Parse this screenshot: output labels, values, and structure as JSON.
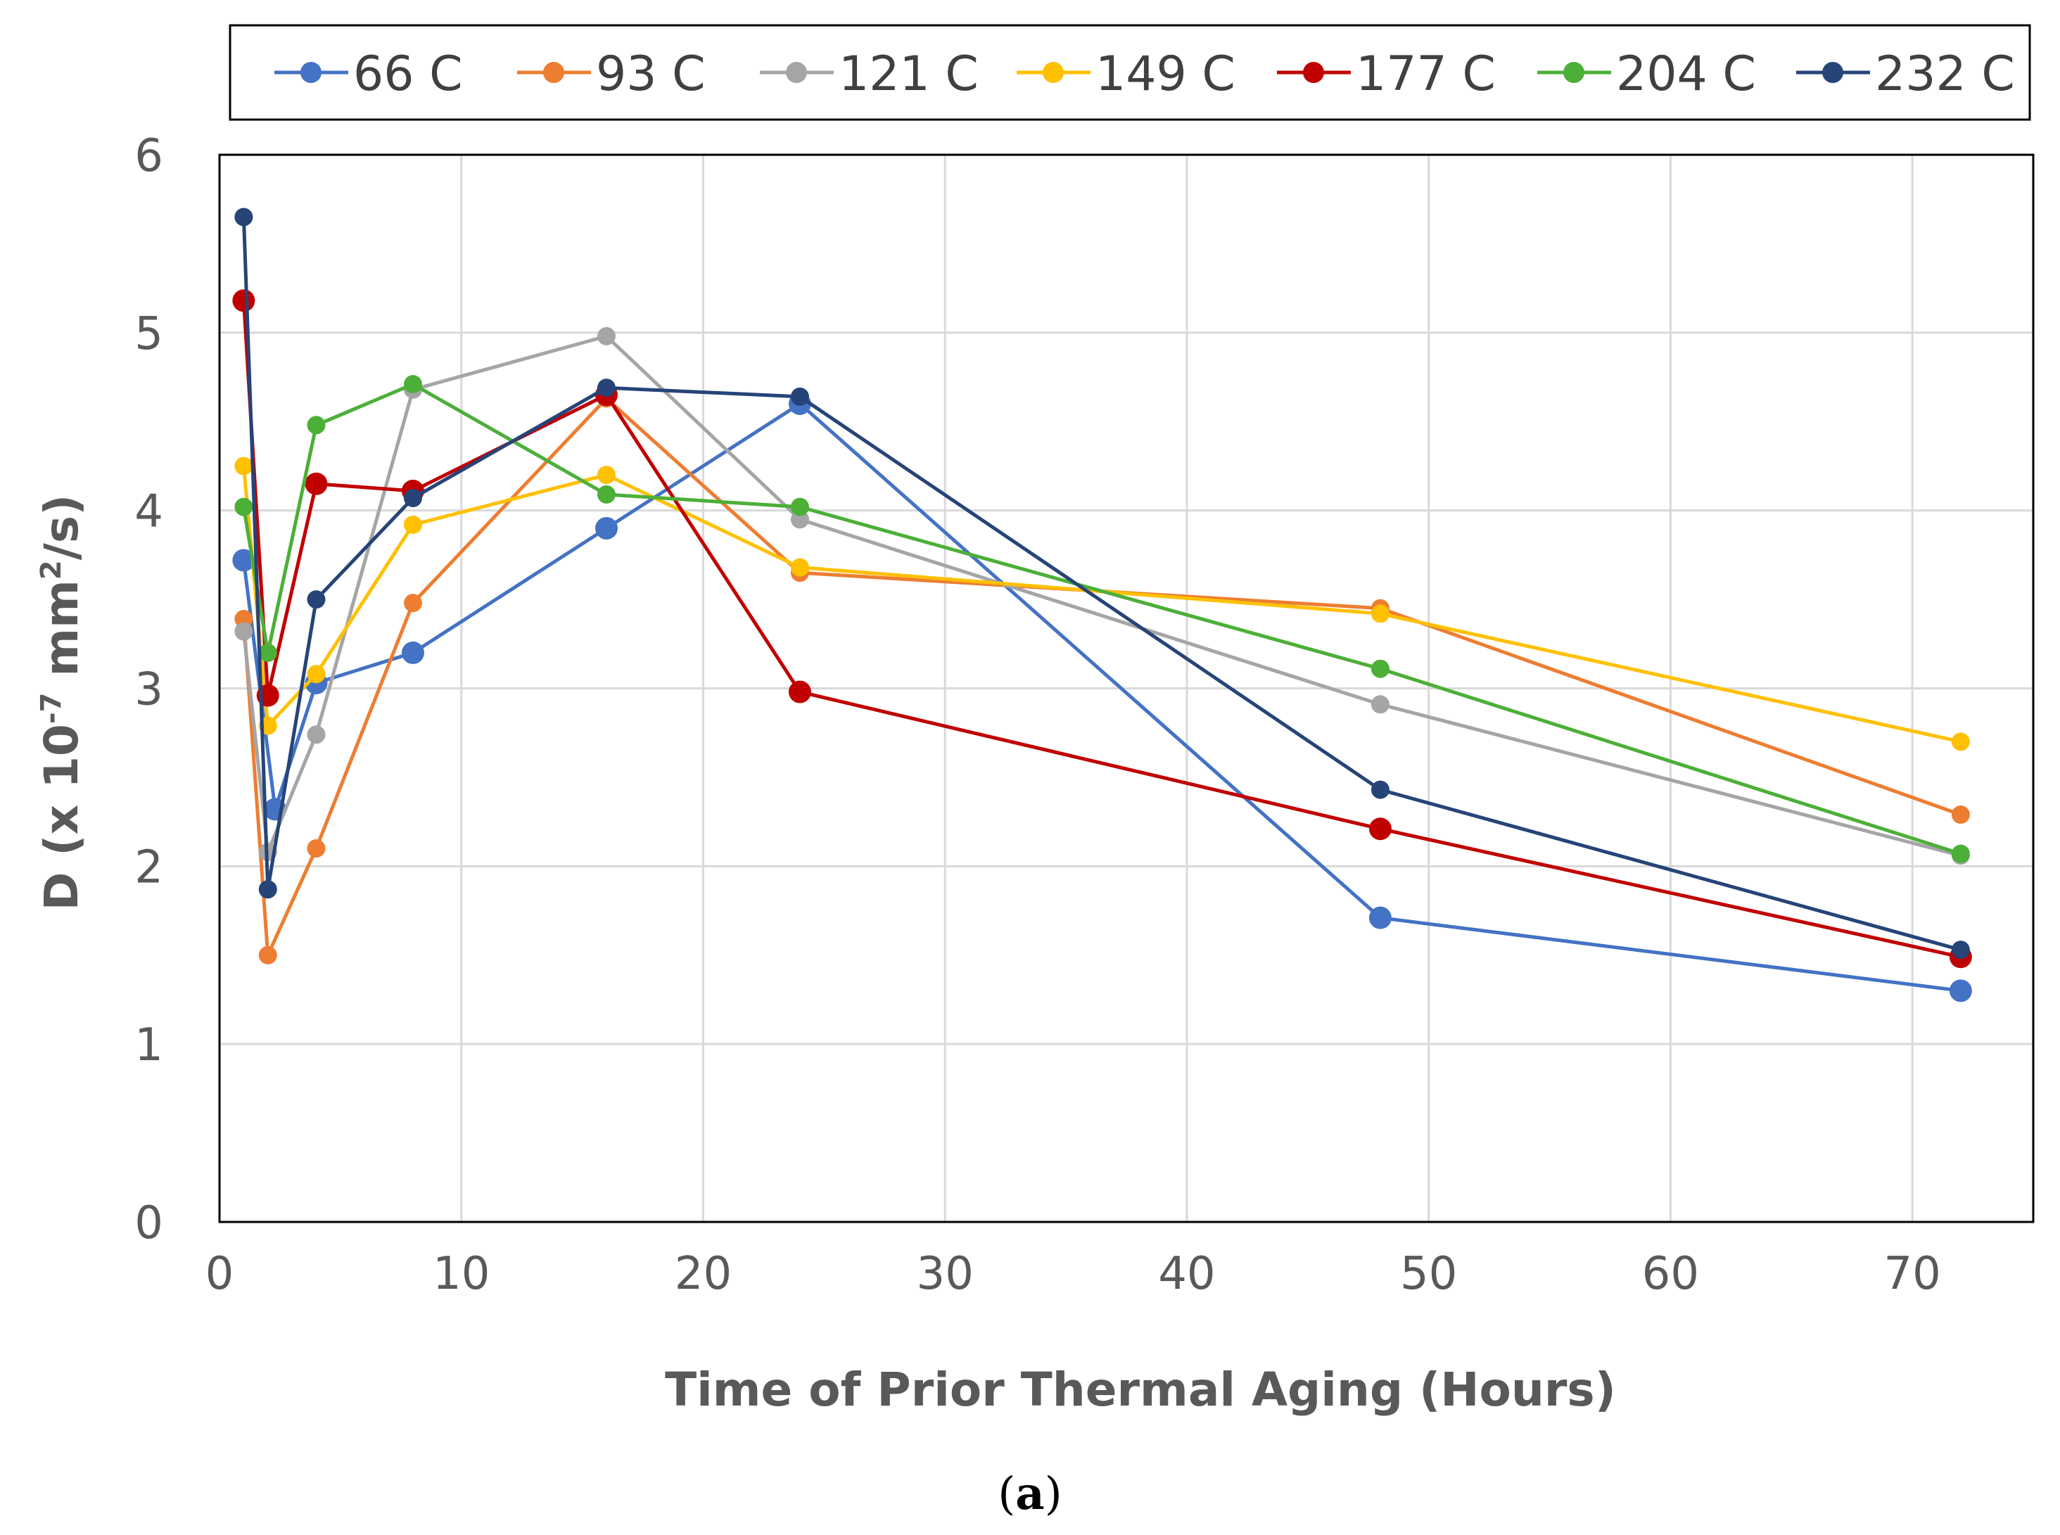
{
  "chart_data": {
    "type": "line",
    "title": "",
    "xlabel": "Time of Prior Thermal Aging (Hours)",
    "ylabel_parts": [
      "D (x 10",
      "-7",
      " mm",
      "2",
      "/s)"
    ],
    "xlim": [
      0,
      75
    ],
    "ylim": [
      0,
      6
    ],
    "xticks": [
      0,
      10,
      20,
      30,
      40,
      50,
      60,
      70
    ],
    "yticks": [
      0,
      1,
      2,
      3,
      4,
      5,
      6
    ],
    "grid": true,
    "legend_position": "top",
    "caption_open": "(",
    "caption_label": "a",
    "caption_close": ")",
    "series": [
      {
        "name": "66 C",
        "color": "#4472C4",
        "points": [
          [
            1,
            3.72
          ],
          [
            2.3,
            2.32
          ],
          [
            4,
            3.03
          ],
          [
            8,
            3.2
          ],
          [
            16,
            3.9
          ],
          [
            24,
            4.6
          ],
          [
            48,
            1.71
          ],
          [
            72,
            1.3
          ]
        ]
      },
      {
        "name": "93 C",
        "color": "#ED7D31",
        "points": [
          [
            1,
            3.39
          ],
          [
            2,
            1.5
          ],
          [
            4,
            2.1
          ],
          [
            8,
            3.48
          ],
          [
            16,
            4.63
          ],
          [
            24,
            3.65
          ],
          [
            48,
            3.45
          ],
          [
            72,
            2.29
          ]
        ]
      },
      {
        "name": "121 C",
        "color": "#A5A5A5",
        "points": [
          [
            1,
            3.32
          ],
          [
            2,
            2.08
          ],
          [
            4,
            2.74
          ],
          [
            8,
            4.68
          ],
          [
            16,
            4.98
          ],
          [
            24,
            3.95
          ],
          [
            48,
            2.91
          ],
          [
            72,
            2.06
          ]
        ]
      },
      {
        "name": "149 C",
        "color": "#FFC000",
        "points": [
          [
            1,
            4.25
          ],
          [
            2,
            2.79
          ],
          [
            4,
            3.08
          ],
          [
            8,
            3.92
          ],
          [
            16,
            4.2
          ],
          [
            24,
            3.68
          ],
          [
            48,
            3.42
          ],
          [
            72,
            2.7
          ]
        ]
      },
      {
        "name": "177 C",
        "color": "#C00000",
        "points": [
          [
            1,
            5.18
          ],
          [
            2,
            2.96
          ],
          [
            4,
            4.15
          ],
          [
            8,
            4.11
          ],
          [
            16,
            4.65
          ],
          [
            24,
            2.98
          ],
          [
            48,
            2.21
          ],
          [
            72,
            1.49
          ]
        ]
      },
      {
        "name": "204 C",
        "color": "#4CAF38",
        "points": [
          [
            1,
            4.02
          ],
          [
            2,
            3.2
          ],
          [
            4,
            4.48
          ],
          [
            8,
            4.71
          ],
          [
            16,
            4.09
          ],
          [
            24,
            4.02
          ],
          [
            48,
            3.11
          ],
          [
            72,
            2.07
          ]
        ]
      },
      {
        "name": "232 C",
        "color": "#264478",
        "points": [
          [
            1,
            5.65
          ],
          [
            2,
            1.87
          ],
          [
            4,
            3.5
          ],
          [
            8,
            4.07
          ],
          [
            16,
            4.69
          ],
          [
            24,
            4.64
          ],
          [
            48,
            2.43
          ],
          [
            72,
            1.53
          ]
        ]
      }
    ]
  }
}
